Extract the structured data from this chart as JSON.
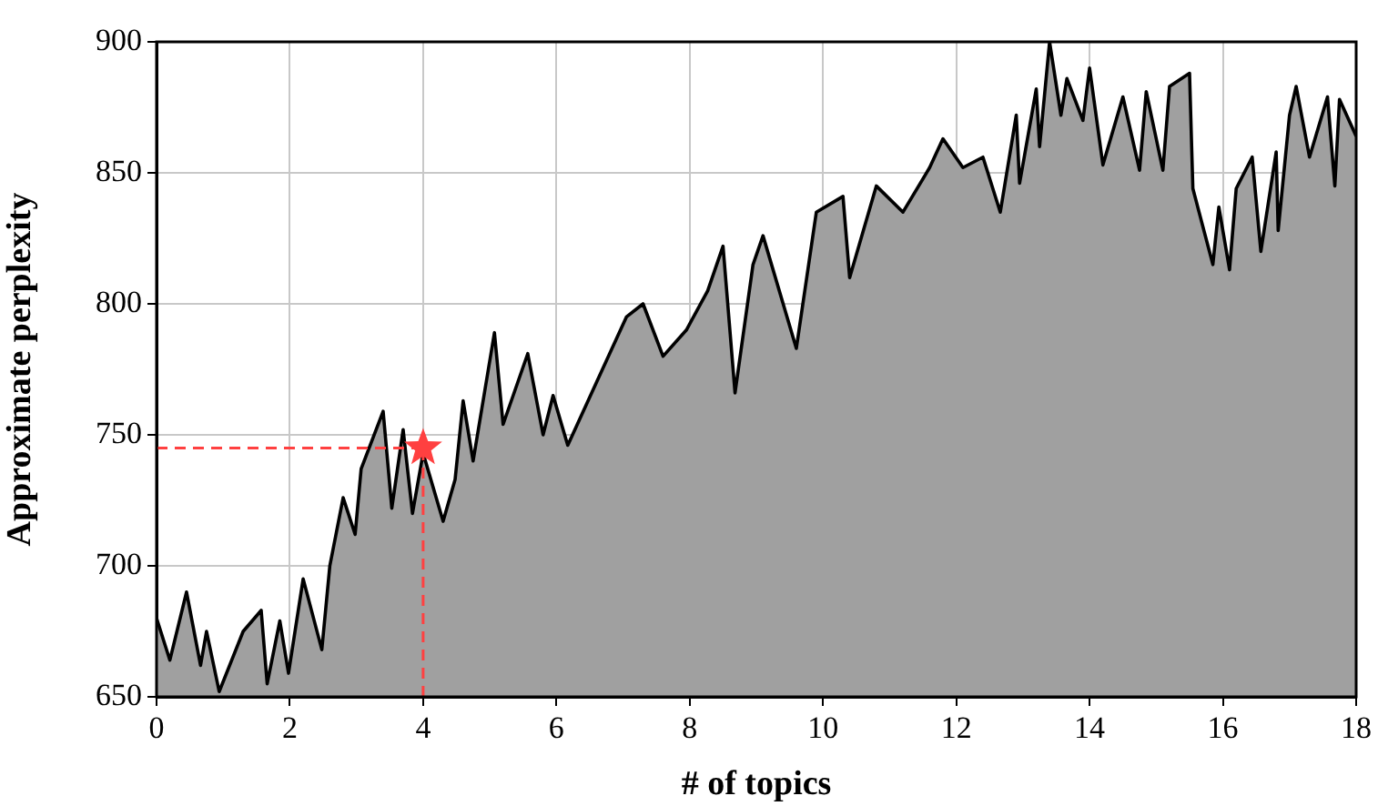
{
  "chart_data": {
    "type": "area",
    "xlabel": "# of topics",
    "ylabel": "Approximate perplexity",
    "xlim": [
      0,
      18
    ],
    "xticks": [
      0,
      2,
      4,
      6,
      8,
      10,
      12,
      14,
      16,
      18
    ],
    "ylim": [
      650,
      900
    ],
    "yticks": [
      650,
      700,
      750,
      800,
      850,
      900
    ],
    "grid": true,
    "legend": false,
    "series": [
      {
        "color": "#a0a0a0",
        "x": [
          0,
          0.2,
          0.45,
          0.66,
          0.75,
          0.94,
          1.3,
          1.57,
          1.66,
          1.85,
          1.98,
          2.2,
          2.48,
          2.6,
          2.8,
          2.98,
          3.07,
          3.4,
          3.53,
          3.7,
          3.84,
          4.0,
          4.3,
          4.48,
          4.6,
          4.75,
          5.07,
          5.2,
          5.57,
          5.8,
          5.95,
          6.17,
          6.6,
          7.05,
          7.3,
          7.6,
          7.95,
          8.27,
          8.5,
          8.68,
          8.95,
          9.1,
          9.6,
          9.9,
          10.3,
          10.4,
          10.8,
          11.2,
          11.6,
          11.8,
          12.1,
          12.4,
          12.66,
          12.9,
          12.95,
          13.2,
          13.25,
          13.4,
          13.57,
          13.66,
          13.9,
          14.0,
          14.2,
          14.5,
          14.75,
          14.85,
          15.1,
          15.2,
          15.5,
          15.55,
          15.85,
          15.94,
          16.1,
          16.2,
          16.44,
          16.57,
          16.8,
          16.83,
          17.0,
          17.1,
          17.3,
          17.57,
          17.68,
          17.75,
          18
        ],
        "values": [
          680,
          664,
          690,
          662,
          675,
          652,
          675,
          683,
          655,
          679,
          659,
          695,
          668,
          700,
          726,
          712,
          737,
          759,
          722,
          752,
          720,
          743,
          717,
          733,
          763,
          740,
          789,
          754,
          781,
          750,
          765,
          746,
          770,
          795,
          800,
          780,
          790,
          805,
          822,
          766,
          815,
          826,
          783,
          835,
          841,
          810,
          845,
          835,
          852,
          863,
          852,
          856,
          835,
          872,
          846,
          882,
          860,
          900,
          872,
          886,
          870,
          890,
          853,
          879,
          851,
          881,
          851,
          883,
          888,
          844,
          815,
          837,
          813,
          844,
          856,
          820,
          858,
          828,
          872,
          883,
          856,
          879,
          845,
          878,
          864
        ]
      },
      {
        "type": "scatter",
        "color": "#ff4040",
        "marker": "star",
        "x": [
          4
        ],
        "values": [
          745
        ]
      }
    ],
    "ref_lines": [
      {
        "axis": "x",
        "value": 4,
        "color": "#ff4040",
        "line_style": "dashed"
      },
      {
        "axis": "y",
        "value": 745,
        "color": "#ff4040",
        "line_style": "dashed"
      }
    ]
  }
}
